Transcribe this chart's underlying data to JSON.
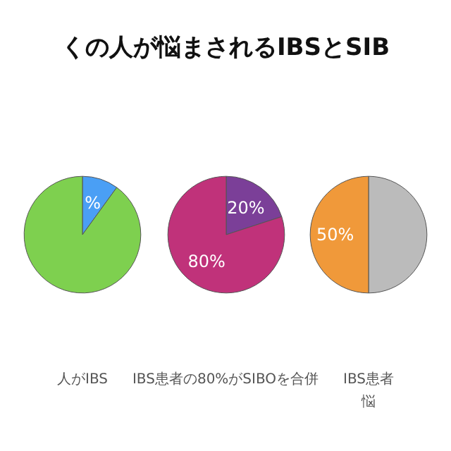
{
  "chart_data": [
    {
      "type": "pie",
      "title": "くの人が悩まされるIBSとSIB",
      "categories": [
        null,
        null
      ],
      "values": [
        10,
        90
      ],
      "colors": [
        "#4a9ff5",
        "#7ed04f"
      ],
      "value_labels": [
        "%",
        null
      ],
      "annotations": [
        "人がIBS"
      ]
    },
    {
      "type": "pie",
      "categories": [
        null,
        null
      ],
      "values": [
        20,
        80
      ],
      "colors": [
        "#7b3f98",
        "#c0327a"
      ],
      "value_labels": [
        "20%",
        "80%"
      ],
      "annotations": [
        "IBS患者の80%がSIBOを合併"
      ]
    },
    {
      "type": "pie",
      "categories": [
        null,
        null
      ],
      "values": [
        50,
        50
      ],
      "colors": [
        "#bbbbbb",
        "#f0993a"
      ],
      "value_labels": [
        null,
        "50%"
      ],
      "annotations": [
        "IBS患者",
        "悩"
      ]
    }
  ]
}
